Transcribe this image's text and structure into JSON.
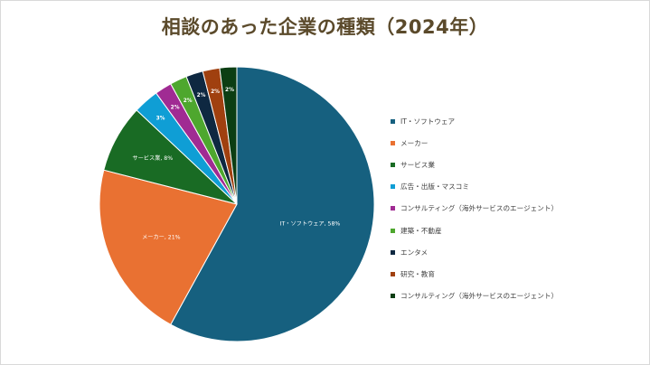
{
  "chart_data": {
    "type": "pie",
    "title": "相談のあった企業の種類（2024年）",
    "slices": [
      {
        "label": "IT・ソフトウェア",
        "value": 58,
        "color": "#16607f",
        "data_label": "IT・ソフトウェア, 58%"
      },
      {
        "label": "メーカー",
        "value": 21,
        "color": "#e97132",
        "data_label": "メーカー, 21%"
      },
      {
        "label": "サービス業",
        "value": 8,
        "color": "#196b24",
        "data_label": "サービス業, 8%"
      },
      {
        "label": "広告・出版・マスコミ",
        "value": 3,
        "color": "#0f9ed5",
        "data_label": "3%"
      },
      {
        "label": "コンサルティング（海外サービスのエージェント）",
        "value": 2,
        "color": "#a02b93",
        "data_label": "2%"
      },
      {
        "label": "建築・不動産",
        "value": 2,
        "color": "#4ea72e",
        "data_label": "2%"
      },
      {
        "label": "エンタメ",
        "value": 2,
        "color": "#0e2841",
        "data_label": "2%"
      },
      {
        "label": "研究・教育",
        "value": 2,
        "color": "#a0400f",
        "data_label": "2%"
      },
      {
        "label": "コンサルティング（海外サービスのエージェント）",
        "value": 2,
        "color": "#0c3e13",
        "data_label": "2%"
      }
    ],
    "legend_position": "right"
  }
}
